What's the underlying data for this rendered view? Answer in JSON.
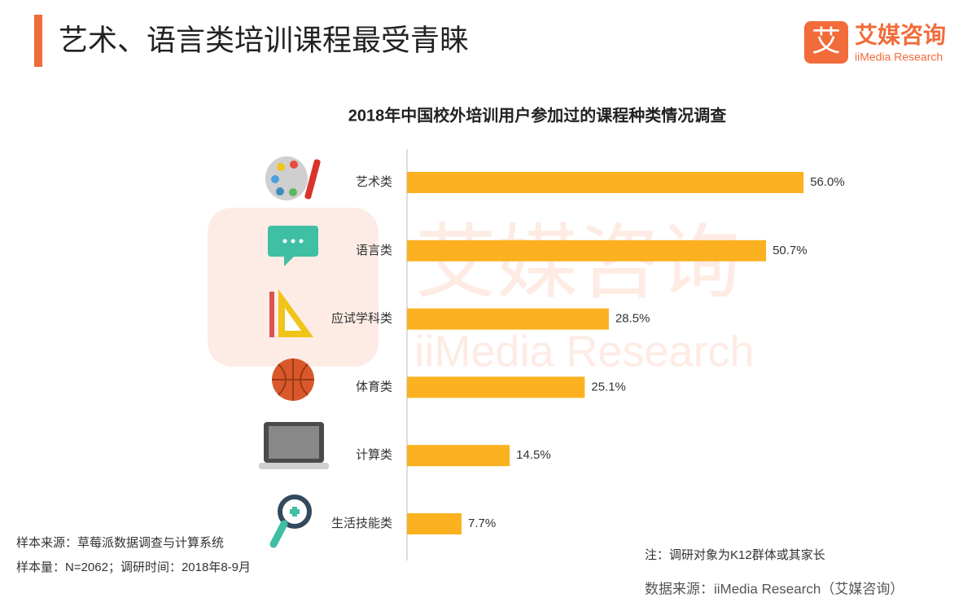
{
  "header": {
    "title": "艺术、语言类培训课程最受青睐"
  },
  "logo": {
    "mark": "艾",
    "name": "艾媒咨询",
    "subname": "iiMedia Research"
  },
  "chart_data": {
    "type": "bar",
    "orientation": "horizontal",
    "title": "2018年中国校外培训用户参加过的课程种类情况调查",
    "categories": [
      "艺术类",
      "语言类",
      "应试学科类",
      "体育类",
      "计算类",
      "生活技能类"
    ],
    "values": [
      56.0,
      50.7,
      28.5,
      25.1,
      14.5,
      7.7
    ],
    "value_labels": [
      "56.0%",
      "50.7%",
      "28.5%",
      "25.1%",
      "14.5%",
      "7.7%"
    ],
    "color": "#fbb120"
  },
  "notes": {
    "sample_source": "样本来源：草莓派数据调查与计算系统",
    "sample_size": "样本量：N=2062；调研时间：2018年8-9月",
    "note": "注：调研对象为K12群体或其家长",
    "data_source": "数据来源：iiMedia Research（艾媒咨询）"
  }
}
